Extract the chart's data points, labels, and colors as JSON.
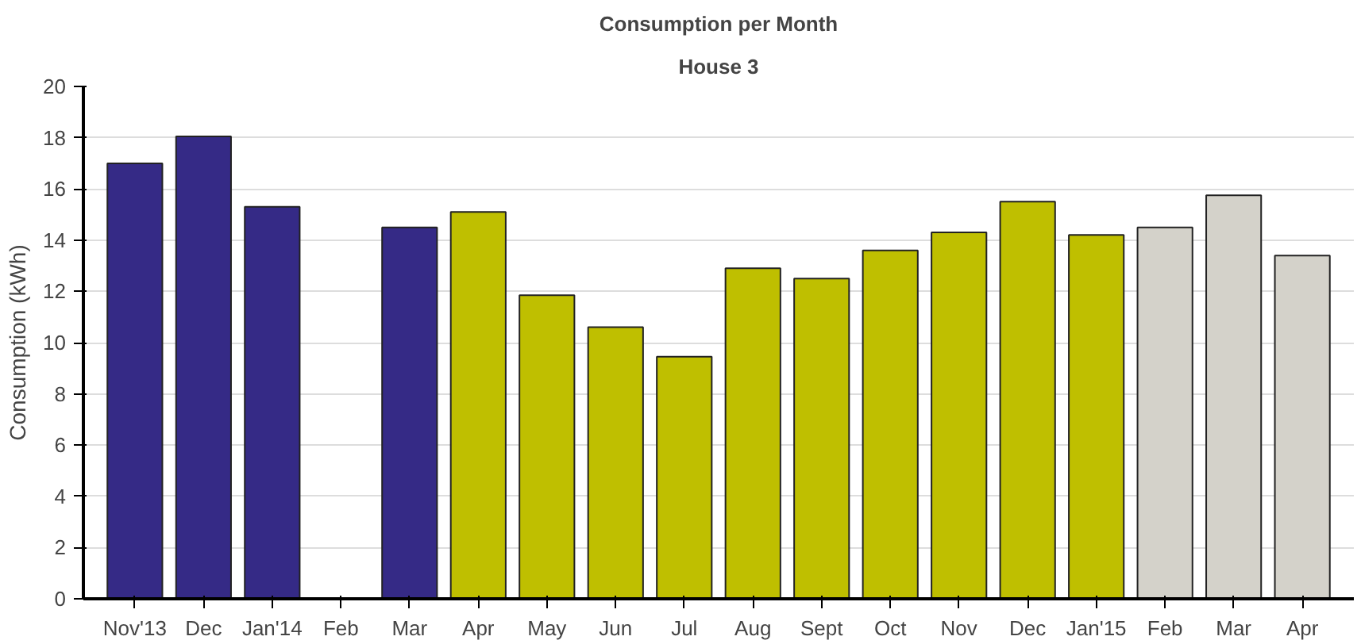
{
  "chart_data": {
    "type": "bar",
    "title": "Consumption per Month",
    "subtitle": "House 3",
    "ylabel": "Consumption (kWh)",
    "categories": [
      "Nov'13",
      "Dec",
      "Jan'14",
      "Feb",
      "Mar",
      "Apr",
      "May",
      "Jun",
      "Jul",
      "Aug",
      "Sept",
      "Oct",
      "Nov",
      "Dec",
      "Jan'15",
      "Feb",
      "Mar",
      "Apr"
    ],
    "values": [
      17.0,
      18.05,
      15.3,
      null,
      14.5,
      15.1,
      11.85,
      10.6,
      9.45,
      12.9,
      12.5,
      13.6,
      14.3,
      15.5,
      14.2,
      14.5,
      15.75,
      13.4
    ],
    "colors": [
      "#352a86",
      "#352a86",
      "#352a86",
      "#352a86",
      "#352a86",
      "#bfbf00",
      "#bfbf00",
      "#bfbf00",
      "#bfbf00",
      "#bfbf00",
      "#bfbf00",
      "#bfbf00",
      "#bfbf00",
      "#bfbf00",
      "#bfbf00",
      "#d4d2ca",
      "#d4d2ca",
      "#d4d2ca"
    ],
    "ylim": [
      0,
      20
    ],
    "yticks": [
      0,
      2,
      4,
      6,
      8,
      10,
      12,
      14,
      16,
      18,
      20
    ],
    "grid": "y"
  }
}
